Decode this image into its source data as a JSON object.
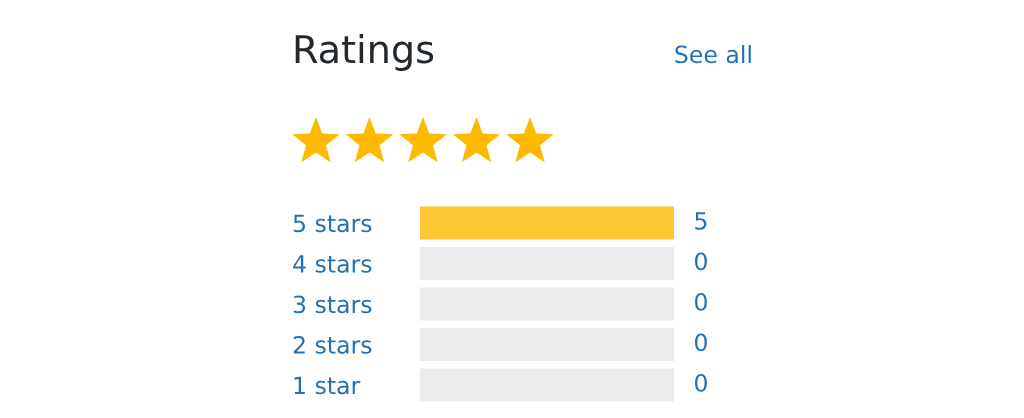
{
  "chart_data": {
    "type": "bar",
    "orientation": "horizontal",
    "stacked": true,
    "title": "Ratings",
    "annotations": [
      "See all"
    ],
    "categories": [
      "5 stars",
      "4 stars",
      "3 stars",
      "2 stars",
      "1 star"
    ],
    "series": [
      {
        "color": "#ffc733",
        "values": [
          5,
          0,
          0,
          0,
          0
        ],
        "value_labels": [
          "5",
          "0",
          "0",
          "0",
          "0"
        ]
      },
      {
        "color": "#ebebeb",
        "values": [
          0,
          5,
          5,
          5,
          5
        ]
      }
    ],
    "tick_labels": "y"
  }
}
